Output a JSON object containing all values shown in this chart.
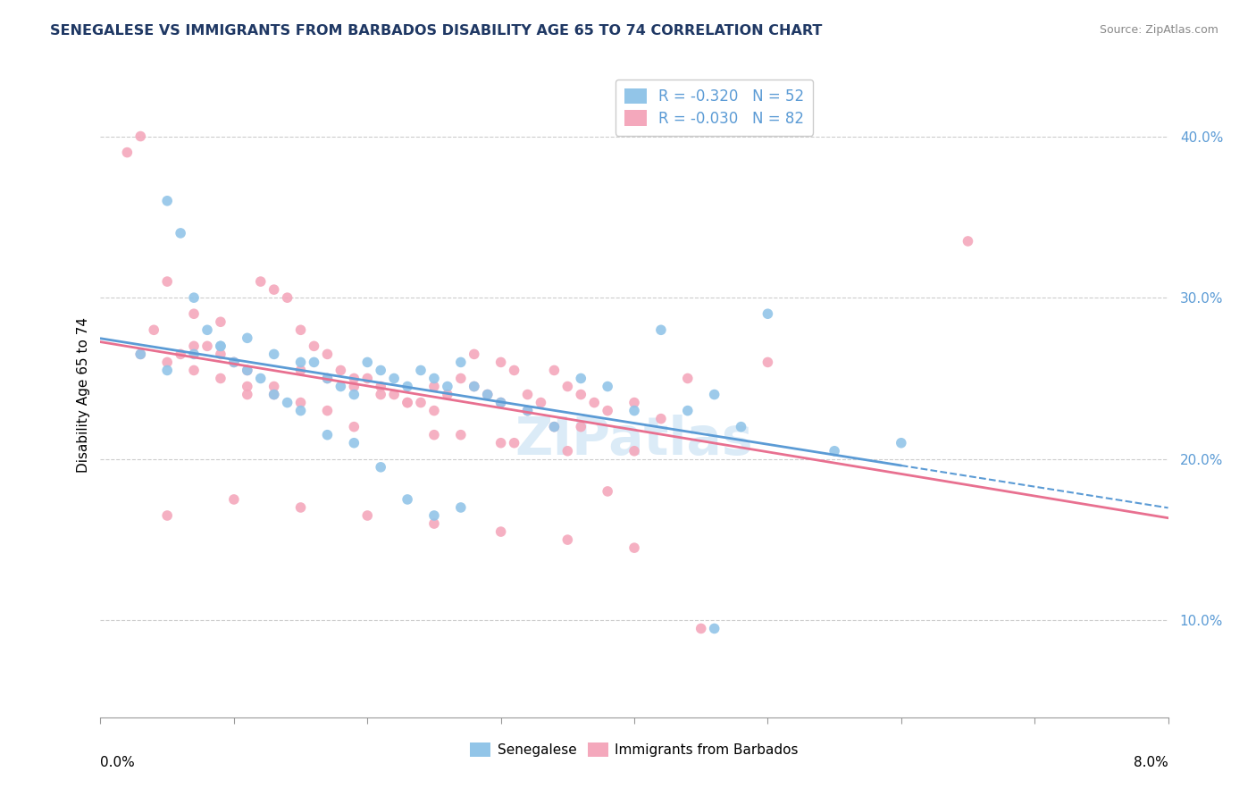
{
  "title": "SENEGALESE VS IMMIGRANTS FROM BARBADOS DISABILITY AGE 65 TO 74 CORRELATION CHART",
  "source": "Source: ZipAtlas.com",
  "ylabel": "Disability Age 65 to 74",
  "yticks": [
    0.1,
    0.2,
    0.3,
    0.4
  ],
  "ytick_labels": [
    "10.0%",
    "20.0%",
    "30.0%",
    "40.0%"
  ],
  "xlim": [
    0.0,
    0.08
  ],
  "ylim": [
    0.04,
    0.44
  ],
  "senegalese_color": "#92C5E8",
  "barbados_color": "#F4A8BC",
  "reg_blue": "#5B9BD5",
  "reg_pink": "#E87090",
  "watermark": "ZIPatlas",
  "senegalese_x": [
    0.003,
    0.005,
    0.006,
    0.007,
    0.008,
    0.009,
    0.01,
    0.011,
    0.012,
    0.013,
    0.014,
    0.015,
    0.016,
    0.017,
    0.018,
    0.019,
    0.02,
    0.021,
    0.022,
    0.023,
    0.024,
    0.025,
    0.026,
    0.027,
    0.028,
    0.029,
    0.03,
    0.032,
    0.034,
    0.036,
    0.038,
    0.04,
    0.042,
    0.044,
    0.046,
    0.048,
    0.05,
    0.005,
    0.007,
    0.009,
    0.011,
    0.013,
    0.015,
    0.017,
    0.019,
    0.021,
    0.023,
    0.025,
    0.027,
    0.055,
    0.06,
    0.046
  ],
  "senegalese_y": [
    0.265,
    0.36,
    0.34,
    0.3,
    0.28,
    0.27,
    0.26,
    0.255,
    0.25,
    0.24,
    0.235,
    0.23,
    0.26,
    0.25,
    0.245,
    0.24,
    0.26,
    0.255,
    0.25,
    0.245,
    0.255,
    0.25,
    0.245,
    0.26,
    0.245,
    0.24,
    0.235,
    0.23,
    0.22,
    0.25,
    0.245,
    0.23,
    0.28,
    0.23,
    0.24,
    0.22,
    0.29,
    0.255,
    0.265,
    0.27,
    0.275,
    0.265,
    0.26,
    0.215,
    0.21,
    0.195,
    0.175,
    0.165,
    0.17,
    0.205,
    0.21,
    0.095
  ],
  "barbados_x": [
    0.002,
    0.003,
    0.004,
    0.005,
    0.006,
    0.007,
    0.008,
    0.009,
    0.01,
    0.011,
    0.012,
    0.013,
    0.014,
    0.015,
    0.016,
    0.017,
    0.018,
    0.019,
    0.02,
    0.021,
    0.022,
    0.023,
    0.024,
    0.025,
    0.026,
    0.027,
    0.028,
    0.029,
    0.03,
    0.031,
    0.032,
    0.033,
    0.034,
    0.035,
    0.036,
    0.037,
    0.038,
    0.04,
    0.042,
    0.044,
    0.003,
    0.005,
    0.007,
    0.009,
    0.011,
    0.013,
    0.015,
    0.017,
    0.019,
    0.021,
    0.023,
    0.025,
    0.007,
    0.009,
    0.011,
    0.013,
    0.015,
    0.017,
    0.019,
    0.025,
    0.031,
    0.036,
    0.04,
    0.05,
    0.005,
    0.01,
    0.015,
    0.02,
    0.025,
    0.03,
    0.035,
    0.04,
    0.045,
    0.028,
    0.03,
    0.032,
    0.034,
    0.027,
    0.03,
    0.035,
    0.038,
    0.065
  ],
  "barbados_y": [
    0.39,
    0.4,
    0.28,
    0.31,
    0.265,
    0.27,
    0.27,
    0.265,
    0.26,
    0.255,
    0.31,
    0.305,
    0.3,
    0.28,
    0.27,
    0.265,
    0.255,
    0.25,
    0.25,
    0.245,
    0.24,
    0.235,
    0.235,
    0.245,
    0.24,
    0.25,
    0.245,
    0.24,
    0.26,
    0.255,
    0.24,
    0.235,
    0.255,
    0.245,
    0.24,
    0.235,
    0.23,
    0.235,
    0.225,
    0.25,
    0.265,
    0.26,
    0.255,
    0.25,
    0.245,
    0.24,
    0.255,
    0.25,
    0.245,
    0.24,
    0.235,
    0.23,
    0.29,
    0.285,
    0.24,
    0.245,
    0.235,
    0.23,
    0.22,
    0.215,
    0.21,
    0.22,
    0.205,
    0.26,
    0.165,
    0.175,
    0.17,
    0.165,
    0.16,
    0.155,
    0.15,
    0.145,
    0.095,
    0.265,
    0.235,
    0.23,
    0.22,
    0.215,
    0.21,
    0.205,
    0.18,
    0.335
  ]
}
